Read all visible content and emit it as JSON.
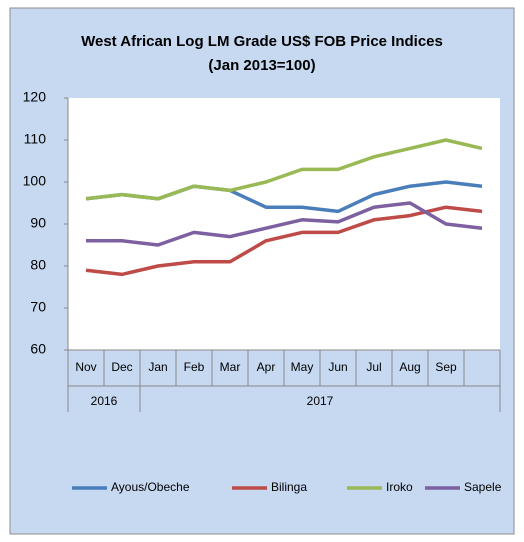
{
  "chart_data": {
    "type": "line",
    "title": "West African Log LM Grade US$ FOB Price Indices",
    "subtitle": "(Jan 2013=100)",
    "categories": [
      "Nov",
      "Dec",
      "Jan",
      "Feb",
      "Mar",
      "Apr",
      "May",
      "Jun",
      "Jul",
      "Aug",
      "Sep",
      null
    ],
    "x_groups": [
      {
        "label": "2016",
        "span": 2
      },
      {
        "label": "2017",
        "span": 10
      }
    ],
    "series": [
      {
        "name": "Ayous/Obeche",
        "color": "#4a7ebb",
        "values": [
          96,
          97,
          96,
          99,
          98,
          94,
          94,
          93,
          97,
          99,
          100,
          99
        ]
      },
      {
        "name": "Bilinga",
        "color": "#be4b48",
        "values": [
          79,
          78,
          80,
          81,
          81,
          86,
          88,
          88,
          91,
          92,
          94,
          93
        ]
      },
      {
        "name": "Iroko",
        "color": "#98b954",
        "values": [
          96,
          97,
          96,
          99,
          98,
          100,
          103,
          103,
          106,
          108,
          110,
          108
        ]
      },
      {
        "name": "Sapele",
        "color": "#7d60a0",
        "values": [
          86,
          86,
          85,
          88,
          87,
          89,
          91,
          90.5,
          94,
          95,
          90,
          89
        ]
      }
    ],
    "ylim": [
      60,
      120
    ],
    "yticks": [
      60,
      70,
      80,
      90,
      100,
      110,
      120
    ],
    "grid": false,
    "legend": "bottom"
  }
}
